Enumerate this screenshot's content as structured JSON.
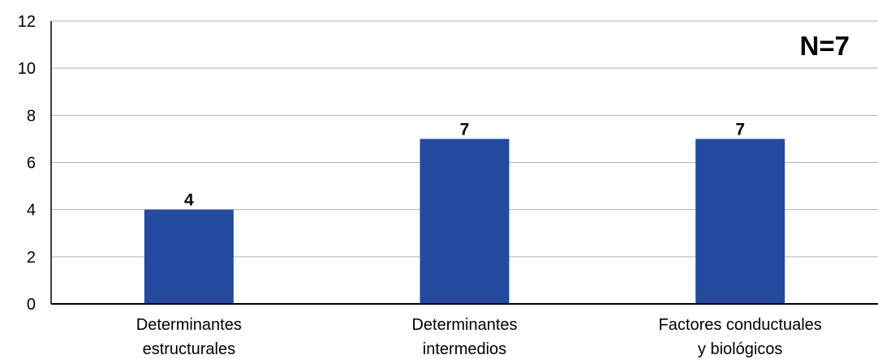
{
  "chart_data": {
    "type": "bar",
    "categories": [
      [
        "Determinantes",
        "estructurales"
      ],
      [
        "Determinantes",
        "intermedios"
      ],
      [
        "Factores conductuales",
        "y biológicos"
      ]
    ],
    "values": [
      4,
      7,
      7
    ],
    "data_labels": [
      "4",
      "7",
      "7"
    ],
    "yticks": [
      "0",
      "2",
      "4",
      "6",
      "8",
      "10",
      "12"
    ],
    "ylim": [
      0,
      12
    ],
    "annotation": "N=7",
    "bar_color": "#234a9e",
    "grid": true,
    "title": "",
    "xlabel": "",
    "ylabel": ""
  }
}
